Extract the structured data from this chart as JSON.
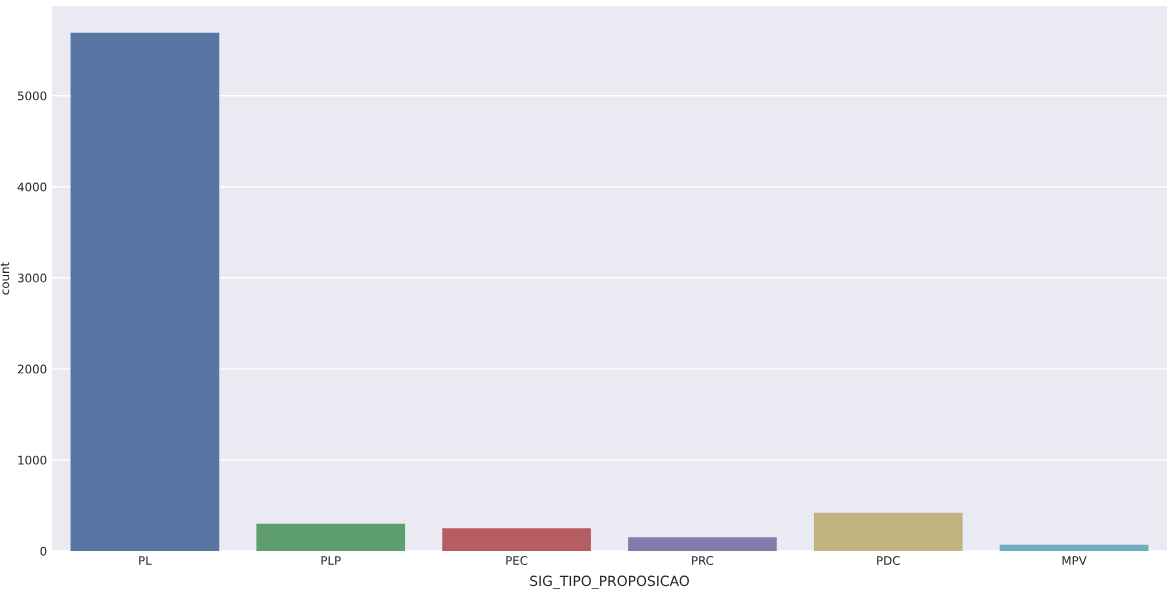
{
  "chart_data": {
    "type": "bar",
    "xlabel": "SIG_TIPO_PROPOSICAO",
    "ylabel": "count",
    "categories": [
      "PL",
      "PLP",
      "PEC",
      "PRC",
      "PDC",
      "MPV"
    ],
    "values": [
      5690,
      300,
      250,
      150,
      420,
      70
    ],
    "colors": [
      "#5875a4",
      "#5f9e6e",
      "#b55d60",
      "#857aab",
      "#c1b37f",
      "#6dadbe"
    ],
    "ylim": [
      0,
      5985
    ],
    "yticks": [
      0,
      1000,
      2000,
      3000,
      4000,
      5000
    ],
    "grid": "y"
  }
}
